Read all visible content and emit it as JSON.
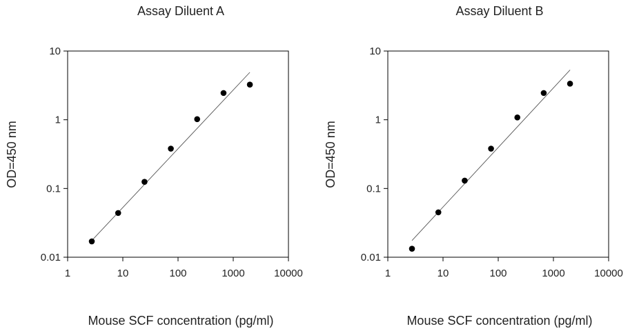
{
  "chart_data": [
    {
      "type": "scatter",
      "title": "Assay Diluent A",
      "xlabel": "Mouse SCF concentration (pg/ml)",
      "ylabel": "OD=450 nm",
      "x_scale": "log",
      "y_scale": "log",
      "xlim": [
        1,
        10000
      ],
      "ylim": [
        0.01,
        10
      ],
      "x_ticks": [
        "1",
        "10",
        "100",
        "1000",
        "10000"
      ],
      "y_ticks": [
        "0.01",
        "0.1",
        "1",
        "10"
      ],
      "grid": false,
      "series": [
        {
          "x": [
            2.74,
            8.23,
            24.7,
            74.1,
            222,
            667,
            2000
          ],
          "y": [
            0.017,
            0.044,
            0.125,
            0.38,
            1.02,
            2.45,
            3.25
          ]
        }
      ],
      "fit_line": {
        "x": [
          2.74,
          2000
        ],
        "y": [
          0.0175,
          4.9
        ]
      }
    },
    {
      "type": "scatter",
      "title": "Assay Diluent B",
      "xlabel": "Mouse SCF concentration (pg/ml)",
      "ylabel": "OD=450 nm",
      "x_scale": "log",
      "y_scale": "log",
      "xlim": [
        1,
        10000
      ],
      "ylim": [
        0.01,
        10
      ],
      "x_ticks": [
        "1",
        "10",
        "100",
        "1000",
        "10000"
      ],
      "y_ticks": [
        "0.01",
        "0.1",
        "1",
        "10"
      ],
      "grid": false,
      "series": [
        {
          "x": [
            2.74,
            8.23,
            24.7,
            74.1,
            222,
            667,
            2000
          ],
          "y": [
            0.0133,
            0.045,
            0.13,
            0.38,
            1.08,
            2.45,
            3.35
          ]
        }
      ],
      "fit_line": {
        "x": [
          2.74,
          2000
        ],
        "y": [
          0.0175,
          5.3
        ]
      }
    }
  ]
}
